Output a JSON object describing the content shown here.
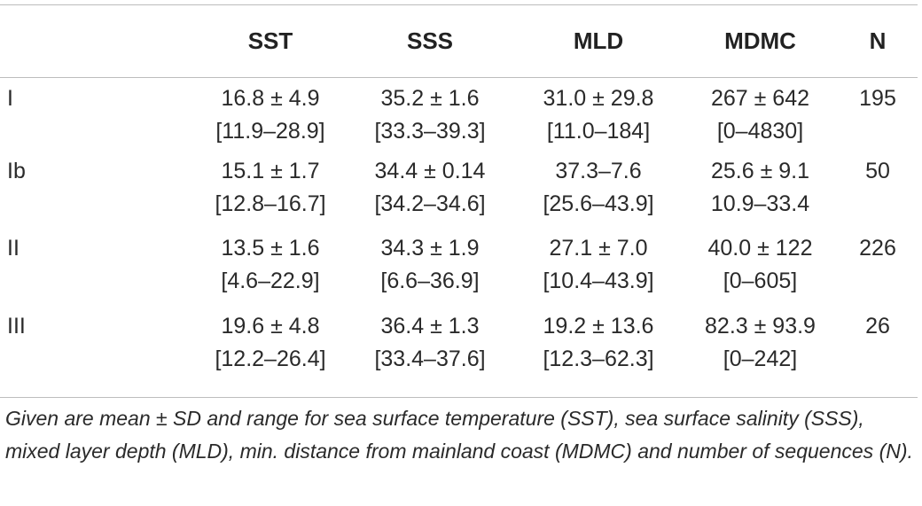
{
  "table": {
    "columns": [
      "",
      "SST",
      "SSS",
      "MLD",
      "MDMC",
      "N"
    ],
    "rows": [
      {
        "label": "I",
        "sst": {
          "mean_sd": "16.8 ± 4.9",
          "range": "[11.9–28.9]"
        },
        "sss": {
          "mean_sd": "35.2 ± 1.6",
          "range": "[33.3–39.3]"
        },
        "mld": {
          "mean_sd": "31.0 ± 29.8",
          "range": "[11.0–184]"
        },
        "mdmc": {
          "mean_sd": "267 ± 642",
          "range": "[0–4830]"
        },
        "n": "195"
      },
      {
        "label": "Ib",
        "sst": {
          "mean_sd": "15.1 ± 1.7",
          "range": "[12.8–16.7]"
        },
        "sss": {
          "mean_sd": "34.4 ± 0.14",
          "range": "[34.2–34.6]"
        },
        "mld": {
          "mean_sd": "37.3–7.6",
          "range": "[25.6–43.9]"
        },
        "mdmc": {
          "mean_sd": "25.6 ± 9.1",
          "range": "10.9–33.4"
        },
        "n": "50"
      },
      {
        "label": "II",
        "sst": {
          "mean_sd": "13.5 ± 1.6",
          "range": "[4.6–22.9]"
        },
        "sss": {
          "mean_sd": "34.3 ± 1.9",
          "range": "[6.6–36.9]"
        },
        "mld": {
          "mean_sd": "27.1 ± 7.0",
          "range": "[10.4–43.9]"
        },
        "mdmc": {
          "mean_sd": "40.0 ± 122",
          "range": "[0–605]"
        },
        "n": "226"
      },
      {
        "label": "III",
        "sst": {
          "mean_sd": "19.6 ± 4.8",
          "range": "[12.2–26.4]"
        },
        "sss": {
          "mean_sd": "36.4 ± 1.3",
          "range": "[33.4–37.6]"
        },
        "mld": {
          "mean_sd": "19.2 ± 13.6",
          "range": "[12.3–62.3]"
        },
        "mdmc": {
          "mean_sd": "82.3 ± 93.9",
          "range": "[0–242]"
        },
        "n": "26"
      }
    ]
  },
  "caption": "Given are mean ± SD and range for sea surface temperature (SST), sea surface salinity (SSS), mixed layer depth (MLD), min. distance from mainland coast (MDMC) and number of sequences (N)."
}
